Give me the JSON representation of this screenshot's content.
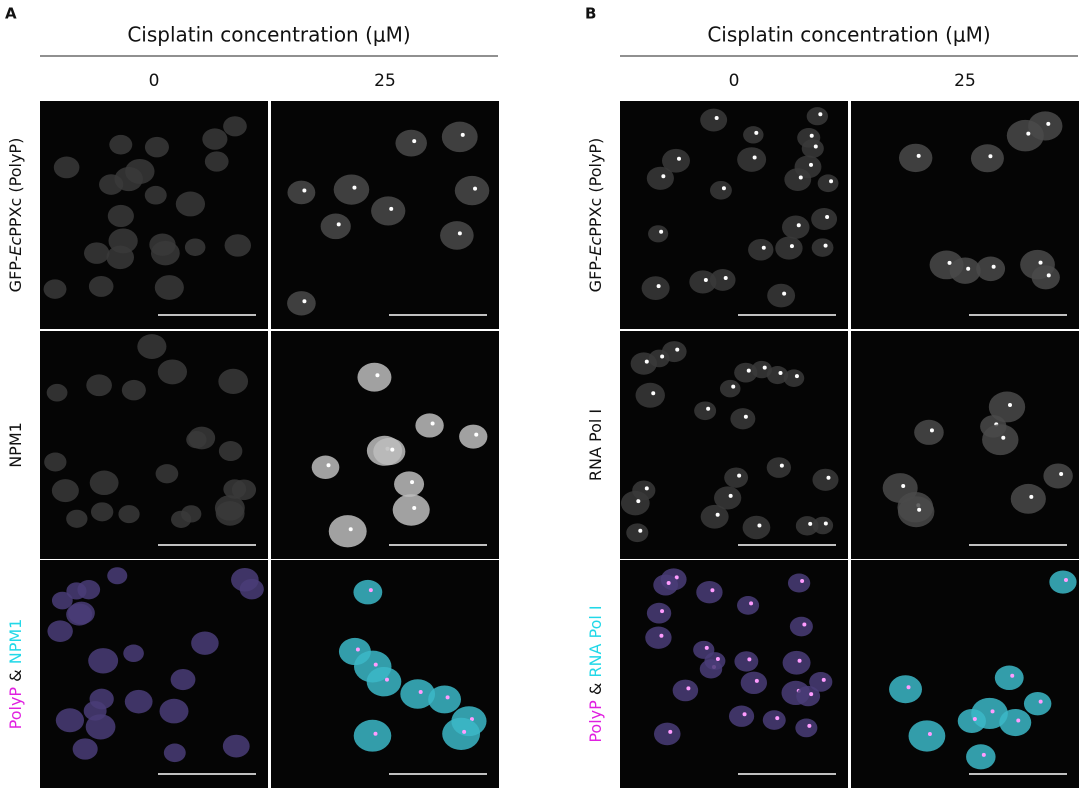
{
  "panels": [
    {
      "label": "A",
      "header": "Cisplatin concentration (μM)",
      "columns": [
        "0",
        "25"
      ],
      "rows": [
        [
          "GFP-",
          "Ec",
          "PPXc (PolyP)"
        ],
        [
          "NPM1"
        ],
        [
          "PolyP",
          " & ",
          "NPM1"
        ]
      ]
    },
    {
      "label": "B",
      "header": "Cisplatin concentration (μM)",
      "columns": [
        "0",
        "25"
      ],
      "rows": [
        [
          "GFP-",
          "Ec",
          "PPXc (PolyP)"
        ],
        [
          "RNA Pol I"
        ],
        [
          "PolyP",
          " & ",
          "RNA Pol I"
        ]
      ]
    }
  ]
}
